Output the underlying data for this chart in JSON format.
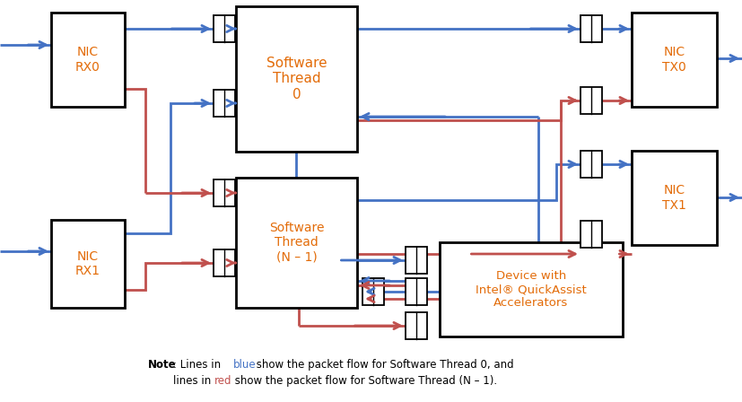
{
  "fig_w": 8.27,
  "fig_h": 4.48,
  "dpi": 100,
  "bg": "#ffffff",
  "blue": "#4472C4",
  "red": "#C0504D",
  "blk": "#000000",
  "orange_text": "#E36C09",
  "note_line1_parts": [
    {
      "text": "Note",
      "bold": true,
      "color": "black"
    },
    {
      "text": ": Lines in ",
      "bold": false,
      "color": "black"
    },
    {
      "text": "blue",
      "bold": false,
      "color": "blue"
    },
    {
      "text": " show the packet flow for Software Thread 0, and",
      "bold": false,
      "color": "black"
    }
  ],
  "note_line2_parts": [
    {
      "text": "lines in ",
      "bold": false,
      "color": "black"
    },
    {
      "text": "red",
      "bold": false,
      "color": "red"
    },
    {
      "text": " show the packet flow for Software Thread (N – 1).",
      "bold": false,
      "color": "black"
    }
  ]
}
